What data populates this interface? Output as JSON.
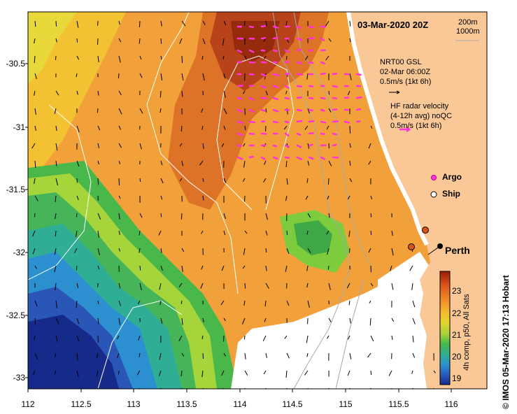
{
  "title": "03-Mar-2020 20Z",
  "scale_labels": [
    "200m",
    "1000m"
  ],
  "nrt": {
    "line1": "NRT00 GSL",
    "line2": "02-Mar 06:00Z",
    "line3": "0.5m/s (1kt 6h)"
  },
  "hf": {
    "line1": "HF radar velocity",
    "line2": "(4-12h avg) noQC",
    "line3": "0.5m/s (1kt 6h)"
  },
  "legend": {
    "argo": "Argo",
    "ship": "Ship"
  },
  "city": "Perth",
  "credit": "©  IMOS 05-Mar-2020 17:13 Hobart",
  "colorbar": {
    "label": "4h comp, p50, All Sats",
    "ticks": [
      "23",
      "22",
      "21",
      "20",
      "19"
    ],
    "colors": [
      "#9b1e08",
      "#d9531b",
      "#f08a28",
      "#f4b830",
      "#e6d42c",
      "#a8d23a",
      "#48b84a",
      "#2fae95",
      "#2c8fd0",
      "#2a56b8",
      "#162a8a"
    ]
  },
  "axes": {
    "x_ticks": [
      "112",
      "112.5",
      "113",
      "113.5",
      "114",
      "114.5",
      "115",
      "115.5",
      "116"
    ],
    "y_ticks": [
      "-30.5",
      "-31",
      "-31.5",
      "-32",
      "-32.5",
      "-33"
    ]
  },
  "colors": {
    "land": "#f9c896",
    "hf_vector": "#ff33d6",
    "contour": "#ffffff",
    "bathy": "#a8a8a8"
  },
  "map_data": {
    "type": "sst_map",
    "lon_range": [
      112.0,
      116.3
    ],
    "lat_range": [
      -33.1,
      -30.1
    ],
    "argo_floats": [],
    "ship_positions": [
      [
        115.68,
        -31.82
      ],
      [
        115.62,
        -31.96
      ]
    ],
    "perth": [
      115.86,
      -31.95
    ]
  }
}
